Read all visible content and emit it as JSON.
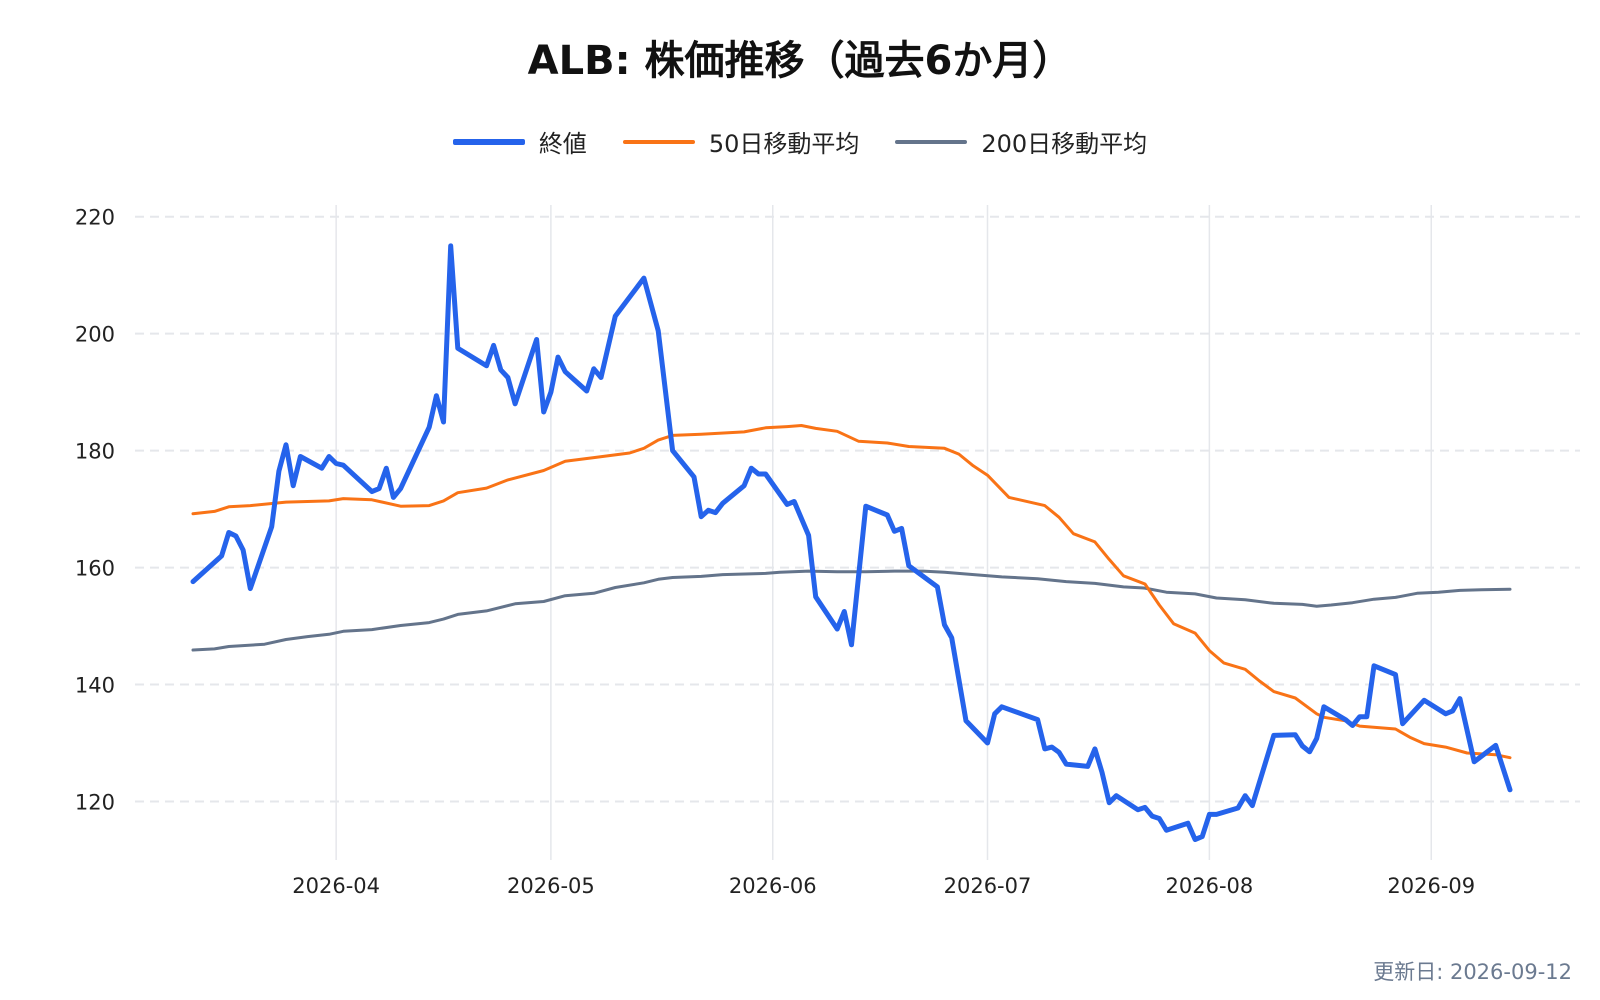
{
  "title": "ALB: 株価推移（過去6か月）",
  "footer": "更新日: 2026-09-12",
  "colors": {
    "close": "#2563eb",
    "ma50": "#f97316",
    "ma200": "#64748b",
    "grid": "#e5e7eb"
  },
  "legend": [
    {
      "label": "終値",
      "color": "#2563eb",
      "width": "thick"
    },
    {
      "label": "50日移動平均",
      "color": "#f97316",
      "width": "normal"
    },
    {
      "label": "200日移動平均",
      "color": "#64748b",
      "width": "normal"
    }
  ],
  "chart_data": {
    "type": "line",
    "title": "ALB: 株価推移（過去6か月）",
    "xlabel": "",
    "ylabel": "",
    "xlim": [
      "2026-03-12",
      "2026-09-12"
    ],
    "ylim": [
      110,
      222
    ],
    "grid": true,
    "legend_position": "top",
    "x_ticks": [
      "2026-04",
      "2026-05",
      "2026-06",
      "2026-07",
      "2026-08",
      "2026-09"
    ],
    "y_ticks": [
      120,
      140,
      160,
      180,
      200,
      220
    ],
    "series": [
      {
        "name": "終値",
        "points": [
          [
            "2026-03-12",
            157.6
          ],
          [
            "2026-03-16",
            162.0
          ],
          [
            "2026-03-17",
            166.0
          ],
          [
            "2026-03-18",
            165.4
          ],
          [
            "2026-03-19",
            163.0
          ],
          [
            "2026-03-20",
            156.4
          ],
          [
            "2026-03-23",
            167.0
          ],
          [
            "2026-03-24",
            176.5
          ],
          [
            "2026-03-25",
            181.0
          ],
          [
            "2026-03-26",
            174.0
          ],
          [
            "2026-03-27",
            179.0
          ],
          [
            "2026-03-30",
            177.0
          ],
          [
            "2026-03-31",
            179.0
          ],
          [
            "2026-04-01",
            177.8
          ],
          [
            "2026-04-02",
            177.5
          ],
          [
            "2026-04-06",
            173.0
          ],
          [
            "2026-04-07",
            173.5
          ],
          [
            "2026-04-08",
            177.0
          ],
          [
            "2026-04-09",
            172.0
          ],
          [
            "2026-04-10",
            173.5
          ],
          [
            "2026-04-14",
            184.0
          ],
          [
            "2026-04-15",
            189.4
          ],
          [
            "2026-04-16",
            184.9
          ],
          [
            "2026-04-17",
            215.0
          ],
          [
            "2026-04-18",
            197.5
          ],
          [
            "2026-04-22",
            194.5
          ],
          [
            "2026-04-23",
            198.0
          ],
          [
            "2026-04-24",
            193.8
          ],
          [
            "2026-04-25",
            192.5
          ],
          [
            "2026-04-26",
            188.0
          ],
          [
            "2026-04-29",
            199.0
          ],
          [
            "2026-04-30",
            186.6
          ],
          [
            "2026-05-01",
            190.0
          ],
          [
            "2026-05-02",
            196.0
          ],
          [
            "2026-05-03",
            193.5
          ],
          [
            "2026-05-06",
            190.2
          ],
          [
            "2026-05-07",
            194.0
          ],
          [
            "2026-05-08",
            192.5
          ],
          [
            "2026-05-10",
            203.0
          ],
          [
            "2026-05-14",
            209.5
          ],
          [
            "2026-05-16",
            200.5
          ],
          [
            "2026-05-18",
            180.0
          ],
          [
            "2026-05-21",
            175.5
          ],
          [
            "2026-05-22",
            168.7
          ],
          [
            "2026-05-23",
            169.8
          ],
          [
            "2026-05-24",
            169.4
          ],
          [
            "2026-05-25",
            171.0
          ],
          [
            "2026-05-28",
            174.0
          ],
          [
            "2026-05-29",
            177.0
          ],
          [
            "2026-05-30",
            176.0
          ],
          [
            "2026-05-31",
            176.0
          ],
          [
            "2026-06-03",
            170.8
          ],
          [
            "2026-06-04",
            171.3
          ],
          [
            "2026-06-06",
            165.5
          ],
          [
            "2026-06-07",
            155.0
          ],
          [
            "2026-06-10",
            149.5
          ],
          [
            "2026-06-11",
            152.5
          ],
          [
            "2026-06-12",
            146.8
          ],
          [
            "2026-06-14",
            170.5
          ],
          [
            "2026-06-17",
            169.0
          ],
          [
            "2026-06-18",
            166.2
          ],
          [
            "2026-06-19",
            166.7
          ],
          [
            "2026-06-20",
            160.3
          ],
          [
            "2026-06-24",
            156.7
          ],
          [
            "2026-06-25",
            150.2
          ],
          [
            "2026-06-26",
            148.0
          ],
          [
            "2026-06-28",
            133.8
          ],
          [
            "2026-07-01",
            130.0
          ],
          [
            "2026-07-02",
            135.0
          ],
          [
            "2026-07-03",
            136.2
          ],
          [
            "2026-07-08",
            134.0
          ],
          [
            "2026-07-09",
            129.0
          ],
          [
            "2026-07-10",
            129.3
          ],
          [
            "2026-07-11",
            128.4
          ],
          [
            "2026-07-12",
            126.4
          ],
          [
            "2026-07-15",
            126.0
          ],
          [
            "2026-07-16",
            129.0
          ],
          [
            "2026-07-17",
            125.0
          ],
          [
            "2026-07-18",
            119.8
          ],
          [
            "2026-07-19",
            121.0
          ],
          [
            "2026-07-22",
            118.6
          ],
          [
            "2026-07-23",
            119.0
          ],
          [
            "2026-07-24",
            117.5
          ],
          [
            "2026-07-25",
            117.1
          ],
          [
            "2026-07-26",
            115.1
          ],
          [
            "2026-07-29",
            116.3
          ],
          [
            "2026-07-30",
            113.5
          ],
          [
            "2026-07-31",
            114.0
          ],
          [
            "2026-08-01",
            117.8
          ],
          [
            "2026-08-02",
            117.8
          ],
          [
            "2026-08-05",
            118.9
          ],
          [
            "2026-08-06",
            121.0
          ],
          [
            "2026-08-07",
            119.3
          ],
          [
            "2026-08-10",
            131.3
          ],
          [
            "2026-08-13",
            131.4
          ],
          [
            "2026-08-14",
            129.5
          ],
          [
            "2026-08-15",
            128.5
          ],
          [
            "2026-08-16",
            130.8
          ],
          [
            "2026-08-17",
            136.2
          ],
          [
            "2026-08-20",
            134.0
          ],
          [
            "2026-08-21",
            133.0
          ],
          [
            "2026-08-22",
            134.5
          ],
          [
            "2026-08-23",
            134.5
          ],
          [
            "2026-08-24",
            143.2
          ],
          [
            "2026-08-27",
            141.7
          ],
          [
            "2026-08-28",
            133.3
          ],
          [
            "2026-08-31",
            137.3
          ],
          [
            "2026-09-03",
            135.0
          ],
          [
            "2026-09-04",
            135.5
          ],
          [
            "2026-09-05",
            137.6
          ],
          [
            "2026-09-07",
            126.8
          ],
          [
            "2026-09-10",
            129.6
          ],
          [
            "2026-09-12",
            122.0
          ]
        ]
      },
      {
        "name": "50日移動平均",
        "points": [
          [
            "2026-03-12",
            169.2
          ],
          [
            "2026-03-15",
            169.6
          ],
          [
            "2026-03-17",
            170.4
          ],
          [
            "2026-03-20",
            170.6
          ],
          [
            "2026-03-25",
            171.2
          ],
          [
            "2026-03-31",
            171.4
          ],
          [
            "2026-04-02",
            171.8
          ],
          [
            "2026-04-06",
            171.6
          ],
          [
            "2026-04-10",
            170.5
          ],
          [
            "2026-04-14",
            170.6
          ],
          [
            "2026-04-16",
            171.4
          ],
          [
            "2026-04-18",
            172.8
          ],
          [
            "2026-04-22",
            173.6
          ],
          [
            "2026-04-25",
            175.0
          ],
          [
            "2026-04-30",
            176.6
          ],
          [
            "2026-05-03",
            178.2
          ],
          [
            "2026-05-07",
            178.8
          ],
          [
            "2026-05-12",
            179.6
          ],
          [
            "2026-05-14",
            180.4
          ],
          [
            "2026-05-16",
            181.8
          ],
          [
            "2026-05-18",
            182.6
          ],
          [
            "2026-05-22",
            182.8
          ],
          [
            "2026-05-28",
            183.2
          ],
          [
            "2026-05-31",
            183.9
          ],
          [
            "2026-06-03",
            184.1
          ],
          [
            "2026-06-05",
            184.3
          ],
          [
            "2026-06-07",
            183.8
          ],
          [
            "2026-06-10",
            183.3
          ],
          [
            "2026-06-13",
            181.6
          ],
          [
            "2026-06-17",
            181.3
          ],
          [
            "2026-06-20",
            180.7
          ],
          [
            "2026-06-25",
            180.4
          ],
          [
            "2026-06-27",
            179.4
          ],
          [
            "2026-06-29",
            177.4
          ],
          [
            "2026-07-01",
            175.8
          ],
          [
            "2026-07-04",
            172.0
          ],
          [
            "2026-07-09",
            170.6
          ],
          [
            "2026-07-11",
            168.6
          ],
          [
            "2026-07-13",
            165.8
          ],
          [
            "2026-07-16",
            164.4
          ],
          [
            "2026-07-18",
            161.4
          ],
          [
            "2026-07-20",
            158.6
          ],
          [
            "2026-07-23",
            157.2
          ],
          [
            "2026-07-25",
            153.6
          ],
          [
            "2026-07-27",
            150.4
          ],
          [
            "2026-07-30",
            148.8
          ],
          [
            "2026-08-01",
            145.8
          ],
          [
            "2026-08-03",
            143.7
          ],
          [
            "2026-08-06",
            142.6
          ],
          [
            "2026-08-08",
            140.6
          ],
          [
            "2026-08-10",
            138.8
          ],
          [
            "2026-08-13",
            137.7
          ],
          [
            "2026-08-16",
            135.0
          ],
          [
            "2026-08-17",
            134.4
          ],
          [
            "2026-08-20",
            133.8
          ],
          [
            "2026-08-22",
            132.9
          ],
          [
            "2026-08-27",
            132.4
          ],
          [
            "2026-08-29",
            131.0
          ],
          [
            "2026-08-31",
            129.9
          ],
          [
            "2026-09-03",
            129.3
          ],
          [
            "2026-09-06",
            128.3
          ],
          [
            "2026-09-10",
            128.0
          ],
          [
            "2026-09-12",
            127.5
          ]
        ]
      },
      {
        "name": "200日移動平均",
        "points": [
          [
            "2026-03-12",
            145.9
          ],
          [
            "2026-03-15",
            146.1
          ],
          [
            "2026-03-17",
            146.5
          ],
          [
            "2026-03-22",
            146.9
          ],
          [
            "2026-03-25",
            147.7
          ],
          [
            "2026-03-28",
            148.2
          ],
          [
            "2026-03-31",
            148.6
          ],
          [
            "2026-04-02",
            149.1
          ],
          [
            "2026-04-06",
            149.4
          ],
          [
            "2026-04-10",
            150.1
          ],
          [
            "2026-04-14",
            150.6
          ],
          [
            "2026-04-16",
            151.2
          ],
          [
            "2026-04-18",
            152.0
          ],
          [
            "2026-04-22",
            152.6
          ],
          [
            "2026-04-26",
            153.8
          ],
          [
            "2026-04-30",
            154.2
          ],
          [
            "2026-05-03",
            155.2
          ],
          [
            "2026-05-07",
            155.6
          ],
          [
            "2026-05-10",
            156.6
          ],
          [
            "2026-05-14",
            157.4
          ],
          [
            "2026-05-16",
            158.0
          ],
          [
            "2026-05-18",
            158.3
          ],
          [
            "2026-05-22",
            158.5
          ],
          [
            "2026-05-25",
            158.8
          ],
          [
            "2026-05-31",
            159.0
          ],
          [
            "2026-06-02",
            159.2
          ],
          [
            "2026-06-06",
            159.4
          ],
          [
            "2026-06-10",
            159.3
          ],
          [
            "2026-06-14",
            159.3
          ],
          [
            "2026-06-18",
            159.4
          ],
          [
            "2026-06-22",
            159.4
          ],
          [
            "2026-06-25",
            159.2
          ],
          [
            "2026-06-28",
            158.9
          ],
          [
            "2026-07-03",
            158.4
          ],
          [
            "2026-07-08",
            158.1
          ],
          [
            "2026-07-12",
            157.6
          ],
          [
            "2026-07-16",
            157.3
          ],
          [
            "2026-07-20",
            156.7
          ],
          [
            "2026-07-23",
            156.5
          ],
          [
            "2026-07-26",
            155.8
          ],
          [
            "2026-07-30",
            155.5
          ],
          [
            "2026-08-02",
            154.8
          ],
          [
            "2026-08-06",
            154.5
          ],
          [
            "2026-08-10",
            153.9
          ],
          [
            "2026-08-14",
            153.7
          ],
          [
            "2026-08-16",
            153.4
          ],
          [
            "2026-08-18",
            153.6
          ],
          [
            "2026-08-21",
            154.0
          ],
          [
            "2026-08-24",
            154.6
          ],
          [
            "2026-08-27",
            154.9
          ],
          [
            "2026-08-30",
            155.6
          ],
          [
            "2026-09-02",
            155.8
          ],
          [
            "2026-09-05",
            156.1
          ],
          [
            "2026-09-08",
            156.2
          ],
          [
            "2026-09-12",
            156.3
          ]
        ]
      }
    ]
  }
}
